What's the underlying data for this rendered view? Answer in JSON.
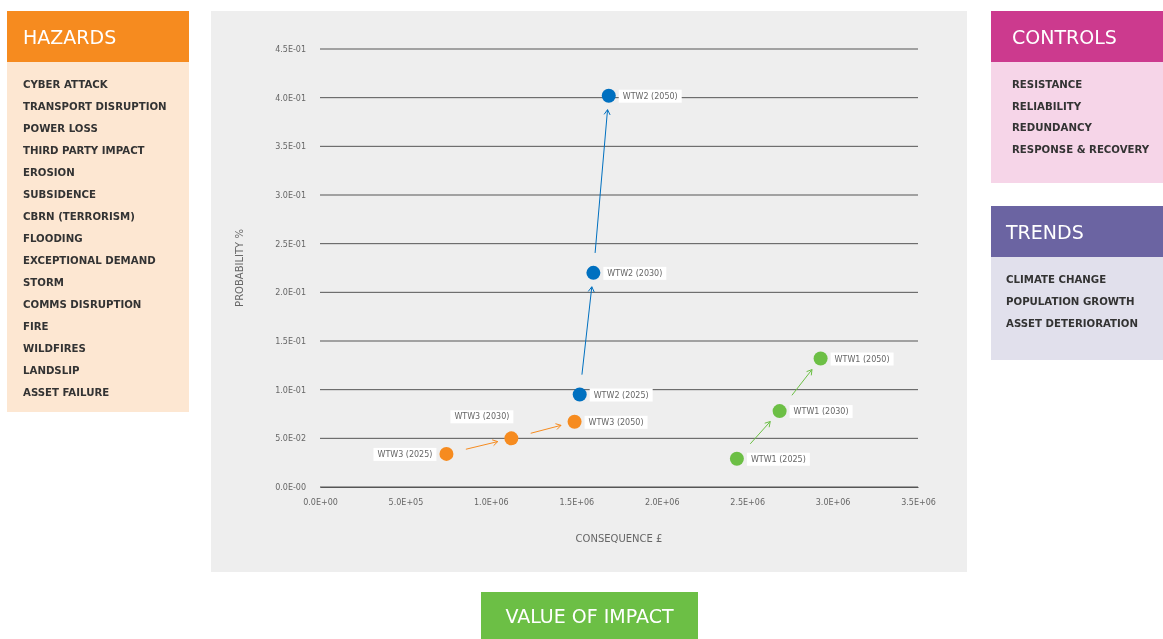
{
  "chart_data": [
    {
      "type": "scatter",
      "xlabel": "CONSEQUENCE £",
      "ylabel": "PROBABILITY %",
      "series": [
        {
          "color": "#0070c0",
          "x": [
            1520000,
            1600000,
            1690000
          ],
          "values": [
            0.095,
            0.22,
            0.402
          ]
        },
        {
          "color": "#f68b1f",
          "x": [
            740000,
            1120000,
            1490000
          ],
          "values": [
            0.034,
            0.05,
            0.067
          ]
        },
        {
          "color": "#6cbf45",
          "x": [
            2440000,
            2690000,
            2930000
          ],
          "values": [
            0.029,
            0.078,
            0.132
          ]
        }
      ],
      "xlim": [
        0,
        3500000
      ],
      "xticks": [
        {
          "value": 0,
          "label": "0.0E+00"
        },
        {
          "value": 500000,
          "label": "5.0E+05"
        },
        {
          "value": 1000000,
          "label": "1.0E+06"
        },
        {
          "value": 1500000,
          "label": "1.5E+06"
        },
        {
          "value": 2000000,
          "label": "2.0E+06"
        },
        {
          "value": 2500000,
          "label": "2.5E+06"
        },
        {
          "value": 3000000,
          "label": "3.0E+06"
        },
        {
          "value": 3500000,
          "label": "3.5E+06"
        }
      ],
      "ylim": [
        0,
        0.45
      ],
      "yticks": [
        {
          "value": 0,
          "label": "0.0E-00"
        },
        {
          "value": 0.05,
          "label": "5.0E-02"
        },
        {
          "value": 0.1,
          "label": "1.0E-01"
        },
        {
          "value": 0.15,
          "label": "1.5E-01"
        },
        {
          "value": 0.2,
          "label": "2.0E-01"
        },
        {
          "value": 0.25,
          "label": "2.5E-01"
        },
        {
          "value": 0.3,
          "label": "3.0E-01"
        },
        {
          "value": 0.35,
          "label": "3.5E-01"
        },
        {
          "value": 0.4,
          "label": "4.0E-01"
        },
        {
          "value": 0.45,
          "label": "4.5E-01"
        }
      ],
      "grid": "y",
      "marker": "circle",
      "annotations": [
        {
          "text": "WTW2 (2025)",
          "x": 1520000,
          "y": 0.095
        },
        {
          "text": "WTW2 (2030)",
          "x": 1600000,
          "y": 0.22
        },
        {
          "text": "WTW2 (2050)",
          "x": 1690000,
          "y": 0.402
        },
        {
          "text": "WTW3 (2025)",
          "x": 740000,
          "y": 0.034
        },
        {
          "text": "WTW3 (2030)",
          "x": 1120000,
          "y": 0.05
        },
        {
          "text": "WTW3 (2050)",
          "x": 1490000,
          "y": 0.067
        },
        {
          "text": "WTW1 (2025)",
          "x": 2440000,
          "y": 0.029
        },
        {
          "text": "WTW1 (2030)",
          "x": 2690000,
          "y": 0.078
        },
        {
          "text": "WTW1 (2050)",
          "x": 2930000,
          "y": 0.132
        }
      ]
    },
    {
      "type": "other",
      "title": "HAZARDS",
      "annotations": [
        "CYBER ATTACK",
        "TRANSPORT DISRUPTION",
        "POWER LOSS",
        "THIRD PARTY IMPACT",
        "EROSION",
        "SUBSIDENCE",
        "CBRN (TERRORISM)",
        "FLOODING",
        "EXCEPTIONAL DEMAND",
        "STORM",
        "COMMS DISRUPTION",
        "FIRE",
        "WILDFIRES",
        "LANDSLIP",
        "ASSET FAILURE"
      ]
    },
    {
      "type": "other",
      "title": "CONTROLS",
      "annotations": [
        "RESISTANCE",
        "RELIABILITY",
        "REDUNDANCY",
        "RESPONSE & RECOVERY"
      ]
    },
    {
      "type": "other",
      "title": "TRENDS",
      "annotations": [
        "CLIMATE CHANGE",
        "POPULATION GROWTH",
        "ASSET DETERIORATION"
      ]
    },
    {
      "type": "other",
      "title": "VALUE OF IMPACT"
    }
  ]
}
